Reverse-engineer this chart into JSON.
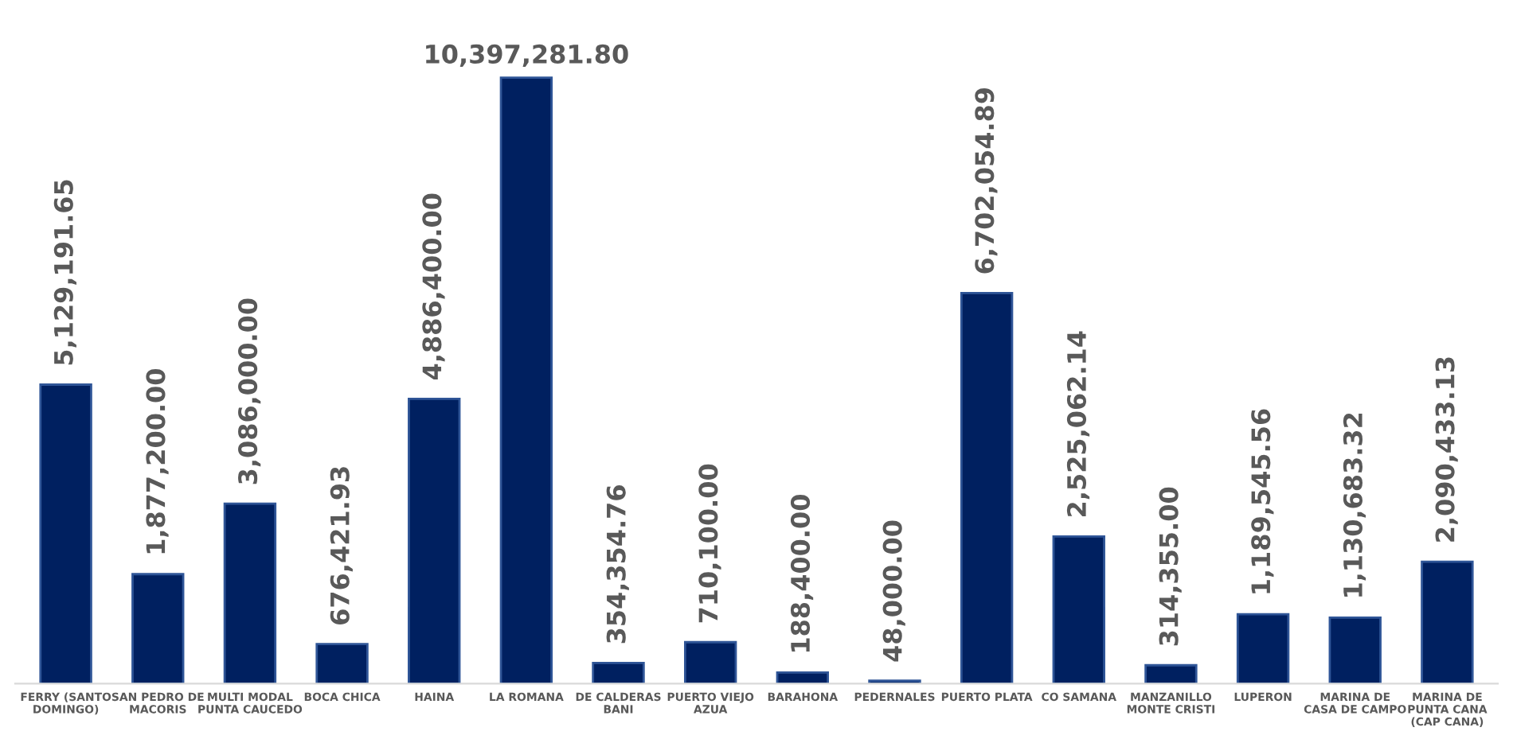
{
  "chart_data": {
    "type": "bar",
    "categories": [
      "FERRY (SANTO DOMINGO)",
      "SAN PEDRO DE MACORIS",
      "MULTI MODAL PUNTA CAUCEDO",
      "BOCA CHICA",
      "HAINA",
      "LA ROMANA",
      "DE CALDERAS BANI",
      "PUERTO VIEJO AZUA",
      "BARAHONA",
      "PEDERNALES",
      "PUERTO PLATA",
      "CO SAMANA",
      "MANZANILLO MONTE CRISTI",
      "LUPERON",
      "MARINA DE CASA DE CAMPO",
      "MARINA DE PUNTA CANA (CAP CANA)"
    ],
    "values": [
      5129191.65,
      1877200.0,
      3086000.0,
      676421.93,
      4886400.0,
      10397281.8,
      354354.76,
      710100.0,
      188400.0,
      48000.0,
      6702054.89,
      2525062.14,
      314355.0,
      1189545.56,
      1130683.32,
      2090433.13
    ],
    "value_labels": [
      "5,129,191.65",
      "1,877,200.00",
      "3,086,000.00",
      "676,421.93",
      "4,886,400.00",
      "10,397,281.80",
      "354,354.76",
      "710,100.00",
      "188,400.00",
      "48,000.00",
      "6,702,054.89",
      "2,525,062.14",
      "314,355.00",
      "1,189,545.56",
      "1,130,683.32",
      "2,090,433.13"
    ],
    "color": "#002060",
    "grid": false,
    "legend": false
  }
}
